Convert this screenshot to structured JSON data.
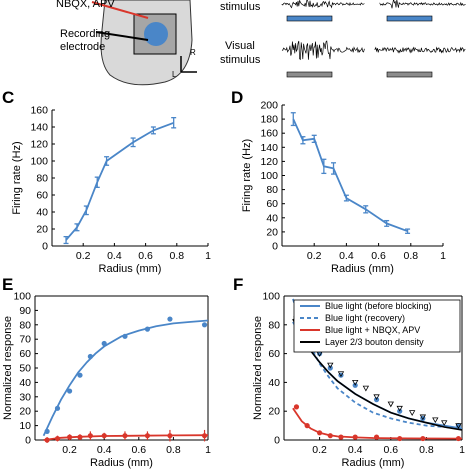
{
  "top": {
    "drug_label": "NBQX, APV",
    "recording_label_1": "Recording",
    "recording_label_2": "electrode",
    "orient_r": "R",
    "orient_l": "L",
    "stimulus_top": "stimulus",
    "visual_label_1": "Visual",
    "visual_label_2": "stimulus",
    "colors": {
      "blue": "#4a86c8",
      "gray": "#8c8c8c",
      "tissue": "#d9d9d9",
      "red": "#d9362b"
    }
  },
  "chart_data": [
    {
      "id": "C",
      "panel_letter": "C",
      "type": "line",
      "xlabel": "Radius (mm)",
      "ylabel": "Firing rate (Hz)",
      "xlim": [
        0,
        1
      ],
      "ylim": [
        0,
        160
      ],
      "xticks": [
        0.2,
        0.4,
        0.6,
        0.8,
        1
      ],
      "yticks": [
        0,
        20,
        40,
        60,
        80,
        100,
        120,
        140,
        160
      ],
      "grid": false,
      "series": [
        {
          "color": "#4a86c8",
          "x": [
            0.09,
            0.16,
            0.22,
            0.29,
            0.35,
            0.52,
            0.65,
            0.78
          ],
          "y": [
            7,
            22,
            42,
            75,
            100,
            122,
            136,
            145
          ],
          "err": [
            4,
            4,
            5,
            6,
            5,
            5,
            4,
            6
          ]
        }
      ]
    },
    {
      "id": "D",
      "panel_letter": "D",
      "type": "line",
      "xlabel": "Radius (mm)",
      "ylabel": "Firing rate (Hz)",
      "xlim": [
        0,
        1
      ],
      "ylim": [
        0,
        200
      ],
      "xticks": [
        0.2,
        0.4,
        0.6,
        0.8,
        1
      ],
      "yticks": [
        0,
        20,
        40,
        60,
        80,
        100,
        120,
        140,
        160,
        180,
        200
      ],
      "grid": false,
      "series": [
        {
          "color": "#4a86c8",
          "x": [
            0.07,
            0.13,
            0.2,
            0.26,
            0.32,
            0.4,
            0.52,
            0.65,
            0.78
          ],
          "y": [
            180,
            150,
            152,
            113,
            110,
            68,
            52,
            32,
            21
          ],
          "err": [
            9,
            5,
            5,
            10,
            8,
            4,
            5,
            4,
            3
          ]
        }
      ]
    },
    {
      "id": "E",
      "panel_letter": "E",
      "type": "scatter",
      "xlabel": "Radius (mm)",
      "ylabel": "Normalized response",
      "xlim": [
        0,
        1
      ],
      "ylim": [
        0,
        100
      ],
      "xticks": [
        0.2,
        0.4,
        0.6,
        0.8,
        1
      ],
      "yticks": [
        0,
        10,
        20,
        30,
        40,
        50,
        60,
        70,
        80,
        90,
        100
      ],
      "grid": false,
      "series": [
        {
          "color": "#4a86c8",
          "points_x": [
            0.07,
            0.13,
            0.2,
            0.26,
            0.32,
            0.4,
            0.52,
            0.65,
            0.78,
            0.98
          ],
          "points_y": [
            6,
            22,
            34,
            45,
            58,
            67,
            72,
            77,
            84,
            80
          ],
          "fit_x": [
            0.05,
            0.1,
            0.15,
            0.2,
            0.25,
            0.3,
            0.35,
            0.4,
            0.5,
            0.6,
            0.7,
            0.8,
            0.9,
            1.0
          ],
          "fit_y": [
            3,
            16,
            28,
            38,
            47,
            54,
            60,
            65,
            72,
            76,
            79,
            81,
            82,
            83
          ]
        },
        {
          "color": "#d9362b",
          "points_x": [
            0.07,
            0.13,
            0.2,
            0.26,
            0.32,
            0.4,
            0.52,
            0.65,
            0.78,
            0.98
          ],
          "points_y": [
            0,
            1,
            2,
            2,
            3,
            3,
            3,
            3,
            3,
            3
          ],
          "err": [
            2,
            2,
            2,
            2,
            3,
            2,
            3,
            3,
            4,
            4
          ],
          "fit_x": [
            0.05,
            0.15,
            0.25,
            0.4,
            0.6,
            0.8,
            1.0
          ],
          "fit_y": [
            0,
            1.5,
            2.2,
            2.8,
            3,
            3.2,
            3.3
          ]
        }
      ]
    },
    {
      "id": "F",
      "panel_letter": "F",
      "type": "scatter",
      "xlabel": "Radius (mm)",
      "ylabel": "Normalized response",
      "xlim": [
        0,
        1
      ],
      "ylim": [
        0,
        100
      ],
      "xticks": [
        0.2,
        0.4,
        0.6,
        0.8,
        1
      ],
      "yticks": [
        0,
        20,
        40,
        60,
        80,
        100
      ],
      "grid": false,
      "legend": [
        {
          "label": "Blue light (before blocking)",
          "color": "#4a86c8",
          "dash": false
        },
        {
          "label": "Blue light (recovery)",
          "color": "#4a86c8",
          "dash": true
        },
        {
          "label": "Blue light + NBQX, APV",
          "color": "#d9362b",
          "dash": false
        },
        {
          "label": "Layer 2/3 bouton density",
          "color": "#000000",
          "dash": false
        }
      ],
      "legend_position": "top-right",
      "series": [
        {
          "color": "#4a86c8",
          "points_x": [
            0.07,
            0.13,
            0.2,
            0.26,
            0.32,
            0.4,
            0.52,
            0.65,
            0.78,
            0.98
          ],
          "points_y": [
            85,
            75,
            60,
            50,
            45,
            38,
            28,
            20,
            15,
            10
          ],
          "fit_x": [
            0.05,
            0.1,
            0.15,
            0.2,
            0.25,
            0.3,
            0.4,
            0.5,
            0.6,
            0.7,
            0.8,
            0.9,
            1.0
          ],
          "fit_y": [
            82,
            71,
            62,
            54,
            47,
            41,
            32,
            25,
            19,
            15,
            12,
            10,
            8
          ]
        },
        {
          "color": "#4a86c8",
          "dash": true,
          "fit_x": [
            0.05,
            0.1,
            0.15,
            0.2,
            0.25,
            0.3,
            0.4,
            0.5,
            0.6,
            0.7,
            0.8,
            0.9,
            1.0
          ],
          "fit_y": [
            98,
            80,
            65,
            53,
            44,
            36,
            26,
            19,
            15,
            12,
            10,
            9,
            8
          ]
        },
        {
          "color": "#d9362b",
          "points_x": [
            0.07,
            0.13,
            0.2,
            0.26,
            0.32,
            0.4,
            0.52,
            0.65,
            0.78,
            0.98
          ],
          "points_y": [
            23,
            10,
            5,
            3,
            2,
            2,
            2,
            1,
            1,
            1
          ],
          "fit_x": [
            0.05,
            0.1,
            0.15,
            0.2,
            0.25,
            0.3,
            0.4,
            0.5,
            0.7,
            1.0
          ],
          "fit_y": [
            22,
            13,
            8,
            5,
            3.5,
            2.5,
            1.8,
            1.4,
            1.1,
            1
          ]
        },
        {
          "color": "#000000",
          "points_x": [
            0.07,
            0.13,
            0.2,
            0.26,
            0.32,
            0.4,
            0.46,
            0.52,
            0.6,
            0.65,
            0.72,
            0.78,
            0.85,
            0.9,
            0.98
          ],
          "points_y": [
            84,
            73,
            60,
            52,
            46,
            40,
            36,
            30,
            25,
            22,
            19,
            16,
            14,
            12,
            10
          ],
          "fit_x": [
            0.05,
            0.1,
            0.15,
            0.2,
            0.25,
            0.3,
            0.4,
            0.5,
            0.6,
            0.7,
            0.8,
            0.9,
            1.0
          ],
          "fit_y": [
            84,
            72,
            62,
            54,
            47,
            41,
            32,
            25,
            19,
            15,
            12,
            9,
            7
          ]
        }
      ]
    }
  ]
}
